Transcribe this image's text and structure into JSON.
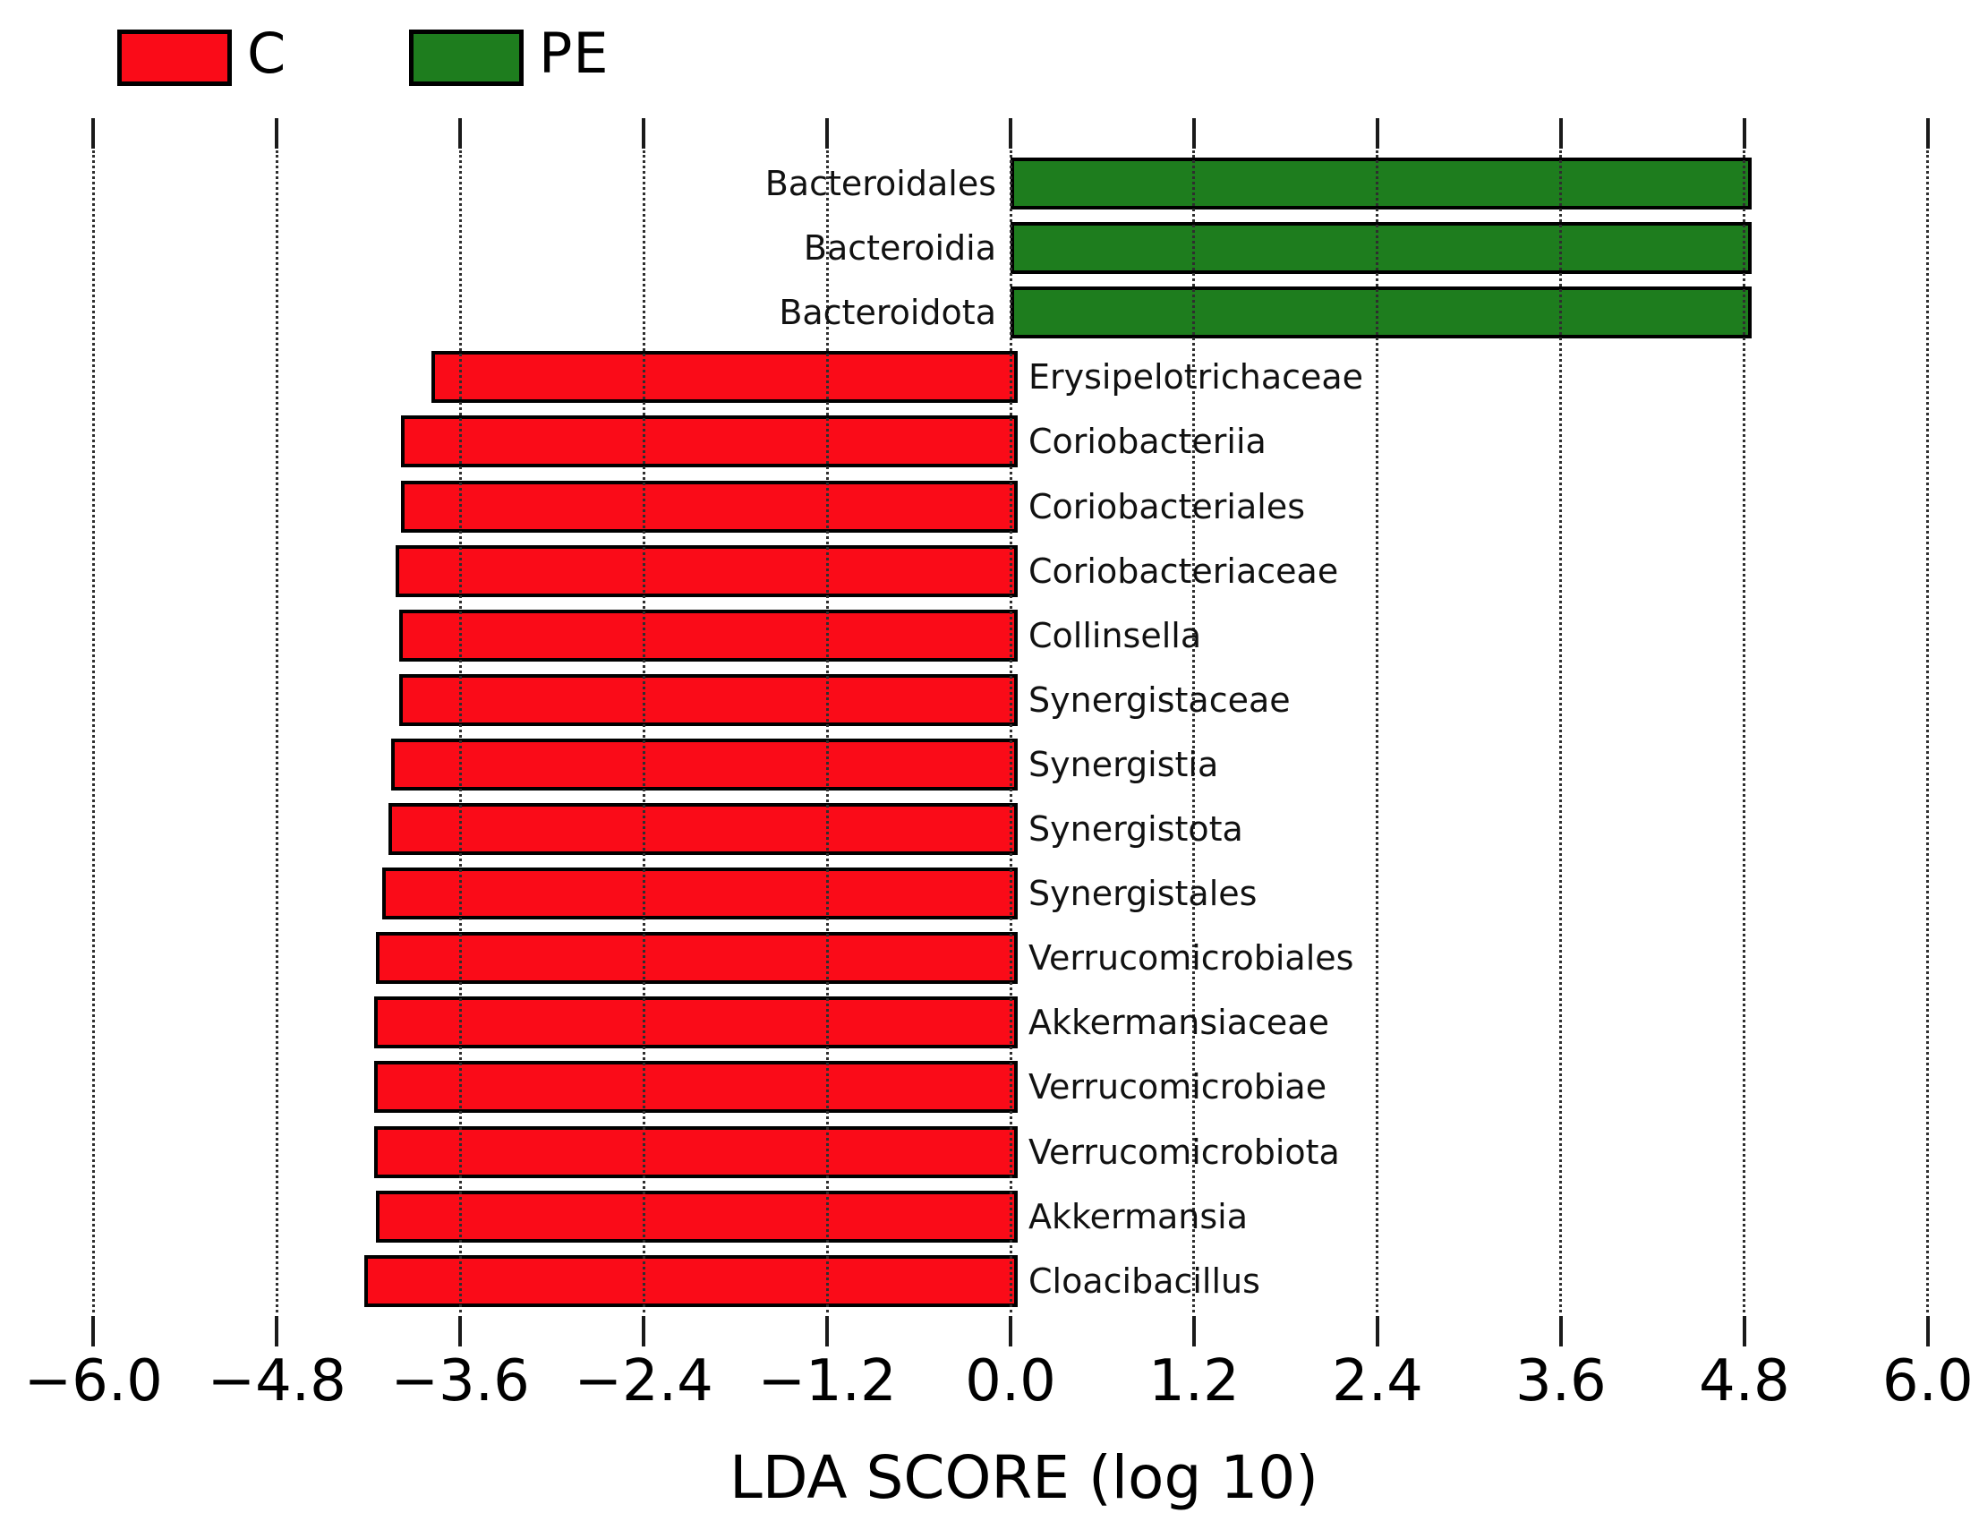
{
  "figure": {
    "background": "#ffffff"
  },
  "legend": {
    "items": [
      {
        "label": "C",
        "color": "#fa0b18"
      },
      {
        "label": "PE",
        "color": "#1e7d1e"
      }
    ]
  },
  "chart_data": {
    "type": "bar",
    "orientation": "horizontal",
    "xlabel": "LDA SCORE (log 10)",
    "xlim": [
      -6.0,
      6.0
    ],
    "grid": "vertical-dotted",
    "legend_position": "top-left",
    "xticks": [
      -6.0,
      -4.8,
      -3.6,
      -2.4,
      -1.2,
      0.0,
      1.2,
      2.4,
      3.6,
      4.8,
      6.0
    ],
    "xtick_labels": [
      "−6.0",
      "−4.8",
      "−3.6",
      "−2.4",
      "−1.2",
      "0.0",
      "1.2",
      "2.4",
      "3.6",
      "4.8",
      "6.0"
    ],
    "groups": {
      "C": "#fa0b18",
      "PE": "#1e7d1e"
    },
    "bars": [
      {
        "label": "Bacteroidales",
        "group": "PE",
        "value": 4.8
      },
      {
        "label": "Bacteroidia",
        "group": "PE",
        "value": 4.8
      },
      {
        "label": "Bacteroidota",
        "group": "PE",
        "value": 4.8
      },
      {
        "label": "Erysipelotrichaceae",
        "group": "C",
        "value": -3.79
      },
      {
        "label": "Coriobacteriia",
        "group": "C",
        "value": -3.99
      },
      {
        "label": "Coriobacteriales",
        "group": "C",
        "value": -3.99
      },
      {
        "label": "Coriobacteriaceae",
        "group": "C",
        "value": -4.02
      },
      {
        "label": "Collinsella",
        "group": "C",
        "value": -4.0
      },
      {
        "label": "Synergistaceae",
        "group": "C",
        "value": -4.0
      },
      {
        "label": "Synergistia",
        "group": "C",
        "value": -4.05
      },
      {
        "label": "Synergistota",
        "group": "C",
        "value": -4.07
      },
      {
        "label": "Synergistales",
        "group": "C",
        "value": -4.11
      },
      {
        "label": "Verrucomicrobiales",
        "group": "C",
        "value": -4.15
      },
      {
        "label": "Akkermansiaceae",
        "group": "C",
        "value": -4.16
      },
      {
        "label": "Verrucomicrobiae",
        "group": "C",
        "value": -4.16
      },
      {
        "label": "Verrucomicrobiota",
        "group": "C",
        "value": -4.16
      },
      {
        "label": "Akkermansia",
        "group": "C",
        "value": -4.15
      },
      {
        "label": "Cloacibacillus",
        "group": "C",
        "value": -4.23
      }
    ]
  }
}
